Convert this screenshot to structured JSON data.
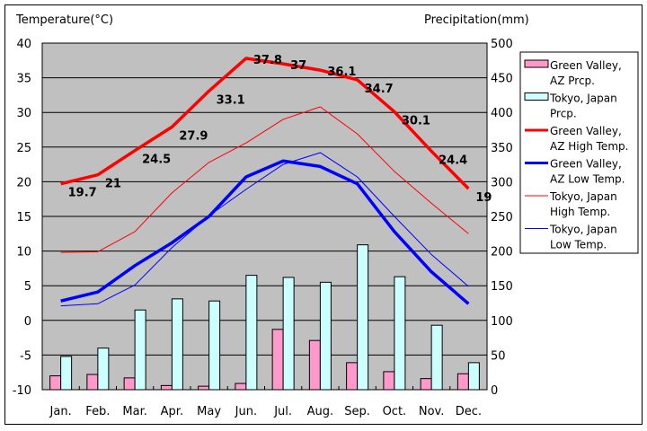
{
  "chart_data": {
    "type": "bar",
    "title": "",
    "categories": [
      "Jan.",
      "Feb.",
      "Mar.",
      "Apr.",
      "May",
      "Jun.",
      "Jul.",
      "Aug.",
      "Sep.",
      "Oct.",
      "Nov.",
      "Dec."
    ],
    "y_left": {
      "label": "Temperature(°C)",
      "range": [
        -10,
        40
      ],
      "ticks": [
        -10,
        -5,
        0,
        5,
        10,
        15,
        20,
        25,
        30,
        35,
        40
      ]
    },
    "y_right": {
      "label": "Precipitation(mm)",
      "range": [
        0,
        500
      ],
      "ticks": [
        0,
        50,
        100,
        150,
        200,
        250,
        300,
        350,
        400,
        450,
        500
      ]
    },
    "grid": true,
    "legend_position": "right",
    "series": [
      {
        "name": "Green Valley, AZ Prcp.",
        "legend": [
          "Green Valley,",
          "AZ Prcp."
        ],
        "type": "bar",
        "axis": "right",
        "color": "#ff99cc",
        "values": [
          20,
          22,
          17,
          6,
          5,
          9,
          87,
          71,
          39,
          26,
          16,
          23
        ]
      },
      {
        "name": "Tokyo, Japan Prcp.",
        "legend": [
          "Tokyo, Japan",
          "Prcp."
        ],
        "type": "bar",
        "axis": "right",
        "color": "#ccffff",
        "values": [
          48,
          60,
          115,
          131,
          128,
          165,
          162,
          155,
          209,
          163,
          93,
          39
        ]
      },
      {
        "name": "Green Valley, AZ High Temp.",
        "legend": [
          "Green Valley,",
          "AZ High Temp."
        ],
        "type": "line",
        "axis": "left",
        "color": "#ff0000",
        "width": "thick",
        "values": [
          19.7,
          21,
          24.5,
          27.9,
          33.1,
          37.8,
          37,
          36.1,
          34.7,
          30.1,
          24.4,
          19
        ],
        "labels": [
          "19.7",
          "21",
          "24.5",
          "27.9",
          "33.1",
          "37.8",
          "37",
          "36.1",
          "34.7",
          "30.1",
          "24.4",
          "19"
        ]
      },
      {
        "name": "Green Valley, AZ Low Temp.",
        "legend": [
          "Green Valley,",
          "AZ Low Temp."
        ],
        "type": "line",
        "axis": "left",
        "color": "#0000ff",
        "width": "thick",
        "values": [
          2.8,
          4.1,
          7.9,
          11.2,
          15.0,
          20.7,
          23.0,
          22.2,
          19.7,
          12.8,
          7.0,
          2.4
        ]
      },
      {
        "name": "Tokyo, Japan High Temp.",
        "legend": [
          "Tokyo, Japan",
          "High Temp."
        ],
        "type": "line",
        "axis": "left",
        "color": "#ff0000",
        "width": "thin",
        "values": [
          9.8,
          9.9,
          12.8,
          18.4,
          22.8,
          25.6,
          29.0,
          30.8,
          26.9,
          21.5,
          16.9,
          12.5
        ]
      },
      {
        "name": "Tokyo, Japan Low Temp.",
        "legend": [
          "Tokyo, Japan",
          "Low Temp."
        ],
        "type": "line",
        "axis": "left",
        "color": "#0000ff",
        "width": "thin",
        "values": [
          2.1,
          2.4,
          5.1,
          10.5,
          15.1,
          18.9,
          22.5,
          24.2,
          20.7,
          15.0,
          9.5,
          4.9
        ]
      }
    ]
  }
}
